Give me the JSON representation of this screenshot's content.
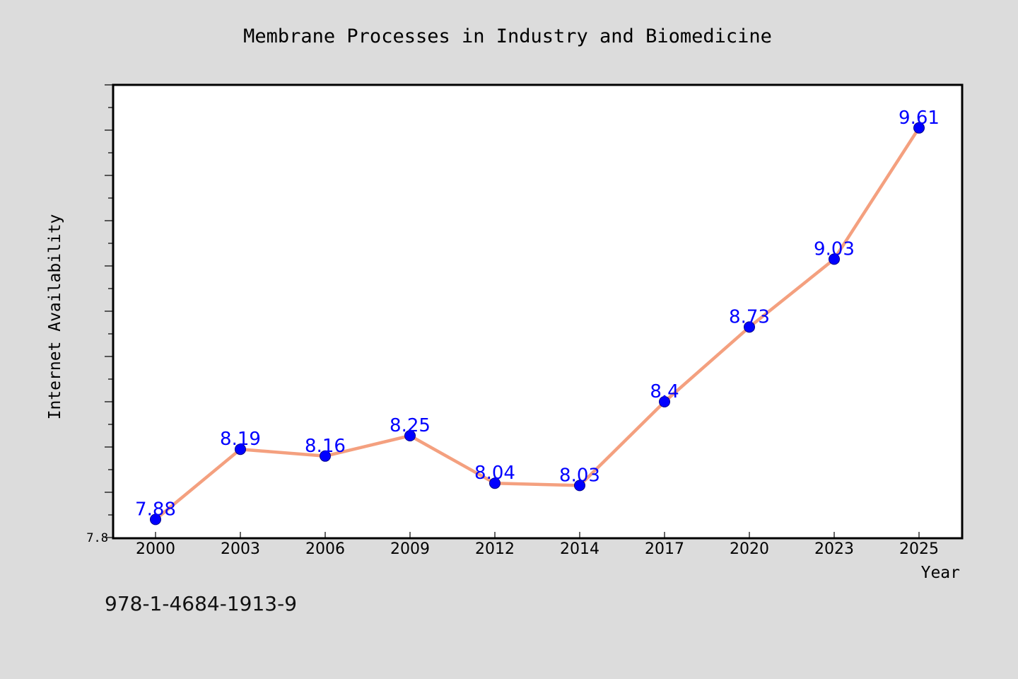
{
  "chart_data": {
    "type": "line",
    "title": "Membrane Processes in Industry and Biomedicine",
    "xlabel": "Year",
    "ylabel": "Internet Availability",
    "categories": [
      "2000",
      "2003",
      "2006",
      "2009",
      "2012",
      "2014",
      "2017",
      "2020",
      "2023",
      "2025"
    ],
    "series": [
      {
        "values": [
          7.88,
          8.19,
          8.16,
          8.25,
          8.04,
          8.03,
          8.4,
          8.73,
          9.03,
          9.61
        ],
        "data_labels": [
          "7.88",
          "8.19",
          "8.16",
          "8.25",
          "8.04",
          "8.03",
          "8.4",
          "8.73",
          "9.03",
          "9.61"
        ],
        "line_color": "#f4a07f",
        "marker_color": "#0000ff"
      }
    ],
    "ylim": [
      7.8,
      9.8
    ],
    "y_tick_labels": [
      "7.8"
    ],
    "grid": false,
    "data_label_color": "#0000ff"
  },
  "footer": {
    "isbn": "978-1-4684-1913-9"
  },
  "colors": {
    "background": "#dcdcdc",
    "plot_background": "#ffffff",
    "frame": "#000000"
  }
}
